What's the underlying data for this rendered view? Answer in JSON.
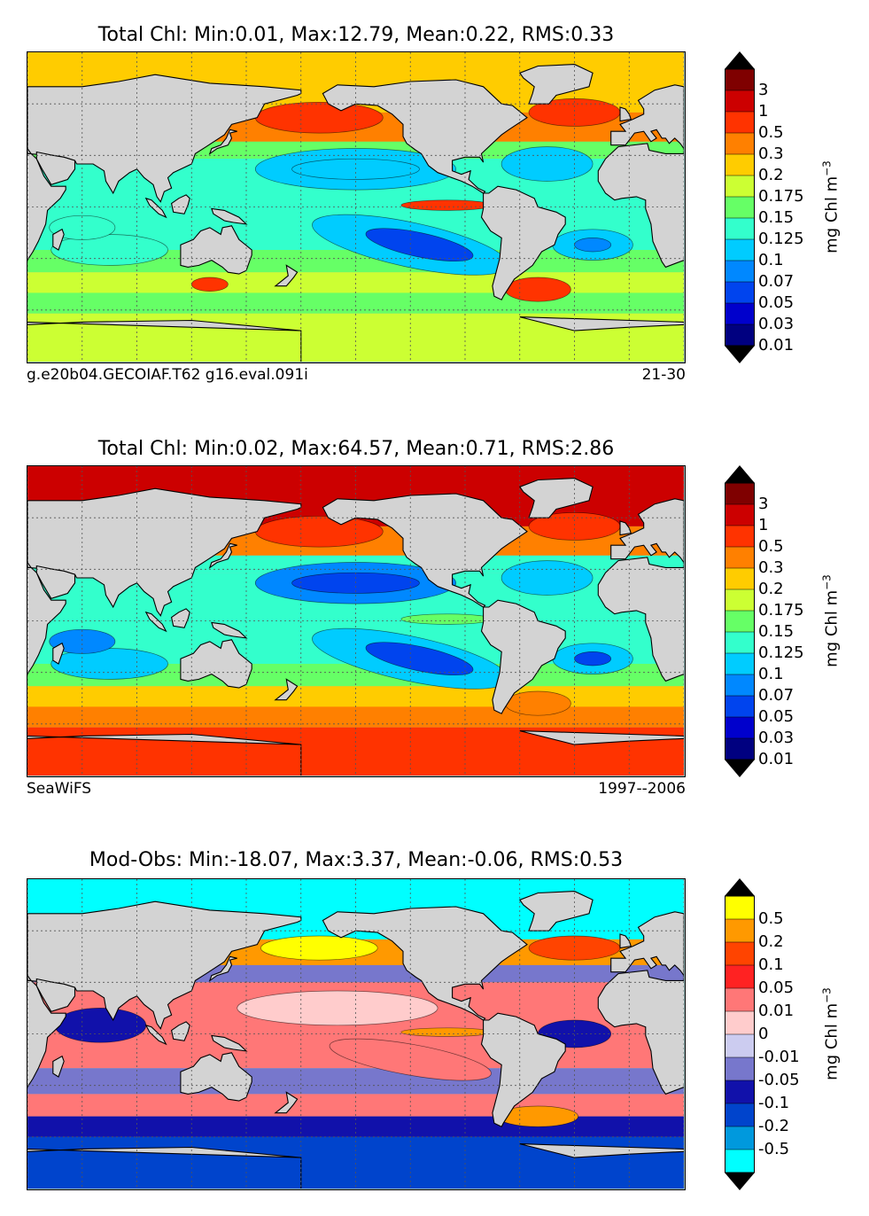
{
  "chart_data": [
    {
      "type": "heatmap",
      "title": "Total Chl: Min:0.01, Max:12.79, Mean:0.22, RMS:0.33",
      "footer_left": "g.e20b04.GECOIAF.T62 g16.eval.091i",
      "footer_right": "21-30",
      "colorbar": {
        "label": "mg Chl m",
        "exponent": "−3",
        "ticks": [
          "3",
          "1",
          "0.5",
          "0.3",
          "0.2",
          "0.175",
          "0.15",
          "0.125",
          "0.1",
          "0.07",
          "0.05",
          "0.03",
          "0.01"
        ],
        "colors": [
          "#000000",
          "#7f0000",
          "#cc0000",
          "#ff3300",
          "#ff8000",
          "#ffcc00",
          "#ccff33",
          "#66ff66",
          "#33ffcc",
          "#00ccff",
          "#0088ff",
          "#0044ee",
          "#0000cc",
          "#000080",
          "#000000"
        ],
        "extend": "both"
      }
    },
    {
      "type": "heatmap",
      "title": "Total Chl: Min:0.02, Max:64.57, Mean:0.71, RMS:2.86",
      "footer_left": "SeaWiFS",
      "footer_right": "1997--2006",
      "colorbar": {
        "label": "mg Chl m",
        "exponent": "−3",
        "ticks": [
          "3",
          "1",
          "0.5",
          "0.3",
          "0.2",
          "0.175",
          "0.15",
          "0.125",
          "0.1",
          "0.07",
          "0.05",
          "0.03",
          "0.01"
        ],
        "colors": [
          "#000000",
          "#7f0000",
          "#cc0000",
          "#ff3300",
          "#ff8000",
          "#ffcc00",
          "#ccff33",
          "#66ff66",
          "#33ffcc",
          "#00ccff",
          "#0088ff",
          "#0044ee",
          "#0000cc",
          "#000080",
          "#000000"
        ],
        "extend": "both"
      }
    },
    {
      "type": "heatmap",
      "title": "Mod-Obs: Min:-18.07, Max:3.37, Mean:-0.06, RMS:0.53",
      "footer_left": "",
      "footer_right": "",
      "colorbar": {
        "label": "mg Chl m",
        "exponent": "−3",
        "ticks": [
          "0.5",
          "0.2",
          "0.1",
          "0.05",
          "0.01",
          "0",
          "-0.01",
          "-0.05",
          "-0.1",
          "-0.2",
          "-0.5"
        ],
        "colors": [
          "#000000",
          "#ffff00",
          "#ff9900",
          "#ff4400",
          "#ff2222",
          "#ff7777",
          "#ffcccc",
          "#ccccf0",
          "#7777cc",
          "#1111aa",
          "#0044cc",
          "#0099dd",
          "#00ffff",
          "#000000"
        ],
        "extend": "both"
      }
    }
  ]
}
